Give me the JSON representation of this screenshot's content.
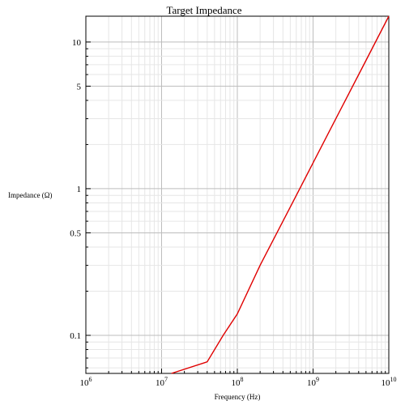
{
  "chart_data": {
    "type": "line",
    "title": "Target Impedance",
    "xlabel": "Frequency (Hz)",
    "ylabel": "Impedance (Ω)",
    "x_scale": "log",
    "y_scale": "log",
    "xlim": [
      1000000,
      10000000000
    ],
    "ylim": [
      0.055,
      15
    ],
    "grid": true,
    "x_ticks": [
      {
        "value": 1000000,
        "base": "10",
        "exp": "6"
      },
      {
        "value": 10000000,
        "base": "10",
        "exp": "7"
      },
      {
        "value": 100000000,
        "base": "10",
        "exp": "8"
      },
      {
        "value": 1000000000,
        "base": "10",
        "exp": "9"
      },
      {
        "value": 10000000000,
        "base": "10",
        "exp": "10"
      }
    ],
    "y_ticks": [
      {
        "value": 0.1,
        "label": "0.1"
      },
      {
        "value": 0.5,
        "label": "0.5"
      },
      {
        "value": 1,
        "label": "1"
      },
      {
        "value": 5,
        "label": "5"
      },
      {
        "value": 10,
        "label": "10"
      }
    ],
    "colors": {
      "line": "#e00000"
    },
    "series": [
      {
        "x": [
          13500000,
          40000000,
          65000000,
          100000000,
          200000000,
          500000000,
          1000000000,
          2000000000,
          5000000000,
          10000000000
        ],
        "y": [
          0.055,
          0.066,
          0.1,
          0.14,
          0.3,
          0.75,
          1.5,
          3.0,
          7.5,
          15
        ]
      }
    ]
  }
}
